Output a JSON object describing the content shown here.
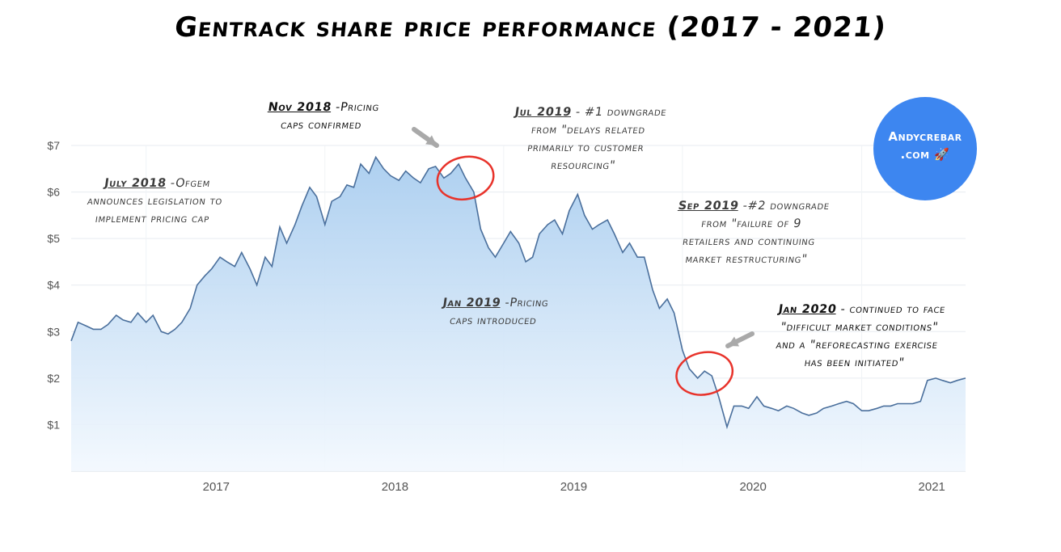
{
  "title": "Gentrack share price performance (2017 - 2021)",
  "badge": {
    "line1": "Andycrebar",
    "line2": ".com 🚀"
  },
  "annotations": [
    {
      "id": "july2018",
      "head": "July 2018",
      "rest": " -Ofgem",
      "lines": [
        "announces legislation to",
        "implement pricing cap"
      ]
    },
    {
      "id": "nov2018",
      "head": "Nov 2018",
      "rest": " -Pricing",
      "lines": [
        "caps confirmed"
      ]
    },
    {
      "id": "jul2019",
      "head": "Jul 2019",
      "rest": " - #1 downgrade",
      "lines": [
        "from \"delays related",
        "primarily to customer",
        "resourcing\""
      ]
    },
    {
      "id": "sep2019",
      "head": "Sep 2019",
      "rest": " -#2 downgrade",
      "lines": [
        "from \"failure of 9",
        "retailers and continuing",
        "market restructuring\""
      ]
    },
    {
      "id": "jan2019",
      "head": "Jan 2019",
      "rest": " -Pricing",
      "lines": [
        "caps introduced"
      ]
    },
    {
      "id": "jan2020",
      "head": "Jan 2020",
      "rest": " - continued to face",
      "lines": [
        "\"difficult market conditions\"",
        "and a \"reforecasting exercise",
        "has been initiated\""
      ]
    }
  ],
  "chart_data": {
    "type": "area",
    "title": "Gentrack share price performance (2017 - 2021)",
    "xlabel": "",
    "ylabel": "",
    "x_ticks": [
      "2017",
      "2018",
      "2019",
      "2020",
      "2021"
    ],
    "y_ticks": [
      "$1",
      "$2",
      "$3",
      "$4",
      "$5",
      "$6",
      "$7"
    ],
    "ylim": [
      0,
      7
    ],
    "xlim": [
      "2016-08",
      "2021-08"
    ],
    "grid": true,
    "colors": {
      "line": "#4a6f9c",
      "fill_top": "#a9cdef",
      "fill_bottom": "#f2f8fe",
      "circle": "#e8332b",
      "arrow": "#a9a9a9"
    },
    "series": [
      {
        "x": [
          "2016-08-01",
          "2016-08-15",
          "2016-09-01",
          "2016-09-15",
          "2016-10-01",
          "2016-10-15",
          "2016-11-01",
          "2016-11-15",
          "2016-12-01",
          "2016-12-15",
          "2017-01-01",
          "2017-01-15",
          "2017-02-01",
          "2017-02-15",
          "2017-03-01",
          "2017-03-15",
          "2017-04-01",
          "2017-04-15",
          "2017-05-01",
          "2017-05-15",
          "2017-06-01",
          "2017-06-15",
          "2017-07-01",
          "2017-07-15",
          "2017-08-01",
          "2017-08-15",
          "2017-09-01",
          "2017-09-15",
          "2017-10-01",
          "2017-10-15",
          "2017-11-01",
          "2017-11-15",
          "2017-12-01",
          "2017-12-15",
          "2018-01-01",
          "2018-01-15",
          "2018-02-01",
          "2018-02-15",
          "2018-03-01",
          "2018-03-15",
          "2018-04-01",
          "2018-04-15",
          "2018-05-01",
          "2018-05-15",
          "2018-06-01",
          "2018-06-15",
          "2018-07-01",
          "2018-07-15",
          "2018-08-01",
          "2018-08-15",
          "2018-09-01",
          "2018-09-15",
          "2018-10-01",
          "2018-10-15",
          "2018-11-01",
          "2018-11-15",
          "2018-12-01",
          "2018-12-15",
          "2019-01-01",
          "2019-01-15",
          "2019-02-01",
          "2019-02-15",
          "2019-03-01",
          "2019-03-15",
          "2019-04-01",
          "2019-04-15",
          "2019-05-01",
          "2019-05-15",
          "2019-06-01",
          "2019-06-15",
          "2019-07-01",
          "2019-07-15",
          "2019-08-01",
          "2019-08-15",
          "2019-09-01",
          "2019-09-15",
          "2019-10-01",
          "2019-10-15",
          "2019-11-01",
          "2019-11-15",
          "2019-12-01",
          "2019-12-15",
          "2020-01-01",
          "2020-01-15",
          "2020-02-01",
          "2020-02-15",
          "2020-03-01",
          "2020-03-15",
          "2020-04-01",
          "2020-04-15",
          "2020-05-01",
          "2020-05-15",
          "2020-06-01",
          "2020-06-15",
          "2020-07-01",
          "2020-07-15",
          "2020-08-01",
          "2020-08-15",
          "2020-09-01",
          "2020-09-15",
          "2020-10-01",
          "2020-10-15",
          "2020-11-01",
          "2020-11-15",
          "2020-12-01",
          "2020-12-15",
          "2021-01-01",
          "2021-01-15",
          "2021-02-01",
          "2021-02-15",
          "2021-03-01",
          "2021-03-15",
          "2021-04-01",
          "2021-04-15",
          "2021-05-01",
          "2021-05-15",
          "2021-06-01",
          "2021-06-15",
          "2021-07-01",
          "2021-07-15",
          "2021-08-01"
        ],
        "values": [
          2.8,
          3.2,
          3.12,
          3.05,
          3.05,
          3.15,
          3.35,
          3.25,
          3.2,
          3.4,
          3.2,
          3.35,
          3.0,
          2.95,
          3.05,
          3.2,
          3.5,
          4.0,
          4.2,
          4.35,
          4.6,
          4.5,
          4.4,
          4.7,
          4.35,
          4.0,
          4.6,
          4.4,
          5.25,
          4.9,
          5.3,
          5.7,
          6.1,
          5.9,
          5.3,
          5.8,
          5.9,
          6.15,
          6.1,
          6.6,
          6.4,
          6.75,
          6.5,
          6.35,
          6.25,
          6.45,
          6.3,
          6.2,
          6.5,
          6.55,
          6.3,
          6.4,
          6.6,
          6.3,
          6.0,
          5.2,
          4.8,
          4.6,
          4.9,
          5.15,
          4.9,
          4.5,
          4.6,
          5.1,
          5.3,
          5.4,
          5.1,
          5.6,
          5.95,
          5.5,
          5.2,
          5.3,
          5.4,
          5.1,
          4.7,
          4.9,
          4.6,
          4.6,
          3.9,
          3.5,
          3.7,
          3.4,
          2.6,
          2.2,
          2.0,
          2.15,
          2.05,
          1.6,
          0.95,
          1.4,
          1.4,
          1.35,
          1.6,
          1.4,
          1.35,
          1.3,
          1.4,
          1.35,
          1.25,
          1.2,
          1.25,
          1.35,
          1.4,
          1.45,
          1.5,
          1.45,
          1.3,
          1.3,
          1.35,
          1.4,
          1.4,
          1.45,
          1.45,
          1.45,
          1.5,
          1.95,
          2.0,
          1.95,
          1.9,
          1.95,
          2.0
        ]
      }
    ],
    "highlights": [
      {
        "label": "Nov 2018",
        "x": "2018-10-15",
        "y": 6.3
      },
      {
        "label": "Jan 2020",
        "x": "2020-02-15",
        "y": 2.1
      }
    ]
  }
}
